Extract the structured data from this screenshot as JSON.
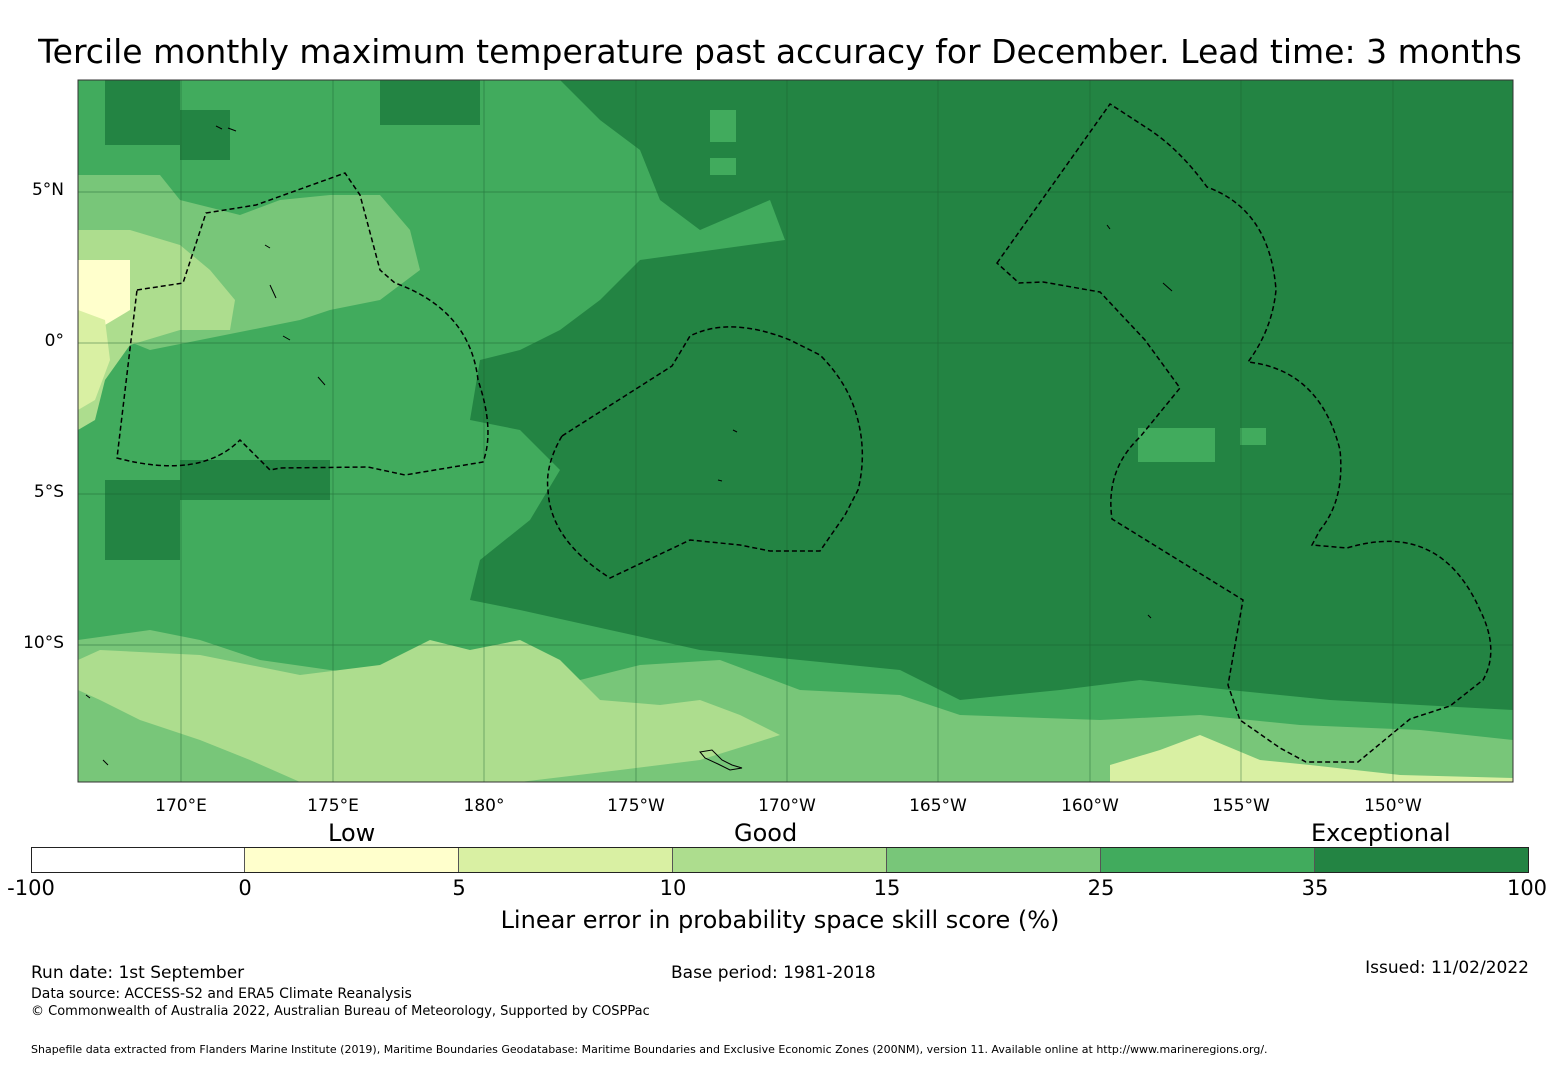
{
  "title": "Tercile monthly maximum temperature past accuracy for December. Lead time: 3 months",
  "map": {
    "lat_labels": [
      "5°N",
      "0°",
      "5°S",
      "10°S"
    ],
    "lon_labels": [
      "170°E",
      "175°E",
      "180°",
      "175°W",
      "170°W",
      "165°W",
      "160°W",
      "155°W",
      "150°W"
    ],
    "background_color": "#238443"
  },
  "legend": {
    "categories": [
      "Low",
      "Good",
      "Exceptional"
    ],
    "ticks": [
      "-100",
      "0",
      "5",
      "10",
      "15",
      "25",
      "35",
      "100"
    ],
    "colors": [
      "#ffffff",
      "#ffffcc",
      "#d9f0a3",
      "#addd8e",
      "#78c679",
      "#41ab5d",
      "#238443"
    ],
    "title": "Linear error in probability space skill score (%)"
  },
  "footer": {
    "run_date": "Run date: 1st September",
    "base_period": "Base period: 1981-2018",
    "issued": "Issued: 11/02/2022",
    "data_source": "Data source: ACCESS-S2 and ERA5 Climate Reanalysis",
    "copyright": "© Commonwealth of Australia 2022, Australian Bureau of Meteorology, Supported by COSPPac",
    "shapefile": "Shapefile data extracted from Flanders Marine Institute (2019), Maritime Boundaries Geodatabase: Maritime Boundaries and Exclusive Economic Zones (200NM), version 11. Available online at http://www.marineregions.org/."
  }
}
